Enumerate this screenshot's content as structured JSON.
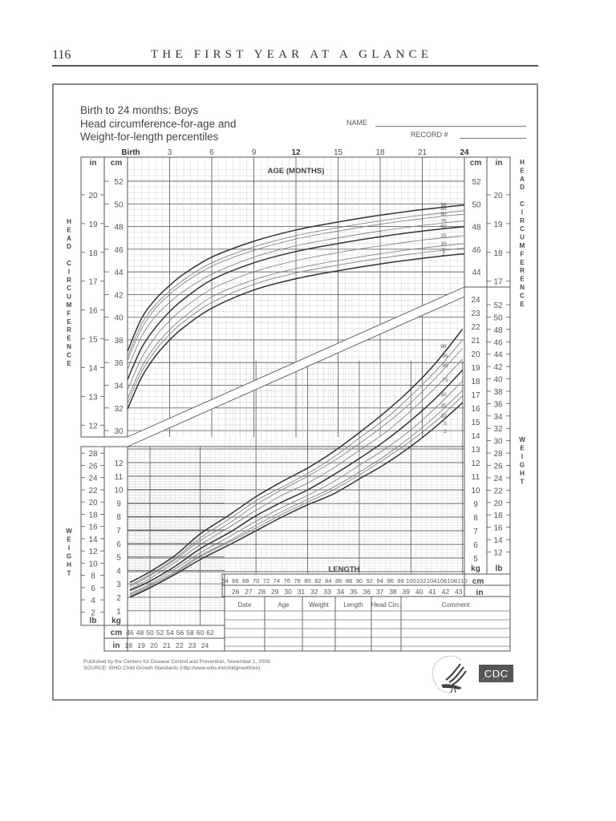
{
  "page": {
    "number": "116",
    "running_title": "THE FIRST YEAR AT A GLANCE"
  },
  "chart_title": {
    "line1": "Birth to 24 months: Boys",
    "line2": "Head circumference-for-age and",
    "line3": "Weight-for-length percentiles"
  },
  "form_fields": {
    "name_label": "NAME",
    "record_label": "RECORD #"
  },
  "axes": {
    "age_label": "AGE (MONTHS)",
    "age_ticks": [
      "Birth",
      "3",
      "6",
      "9",
      "12",
      "15",
      "18",
      "21",
      "24"
    ],
    "head_cm_ticks": [
      "52",
      "50",
      "48",
      "46",
      "44",
      "42",
      "40",
      "38",
      "36",
      "34",
      "32",
      "30"
    ],
    "head_in_ticks_left": [
      "20",
      "19",
      "18",
      "17",
      "16",
      "15",
      "14",
      "13",
      "12"
    ],
    "head_in_ticks_right": [
      "20",
      "19",
      "18",
      "17"
    ],
    "head_cm_ticks_right": [
      "52",
      "50",
      "48",
      "46",
      "44"
    ],
    "unit_in": "in",
    "unit_cm": "cm",
    "unit_kg": "kg",
    "unit_lb": "lb",
    "vertical_head_label": "HEAD CIRCUMFERENCE",
    "vertical_weight_label": "WEIGHT",
    "weight_kg_left": [
      "12",
      "11",
      "10",
      "9",
      "8",
      "7",
      "6",
      "5",
      "4",
      "3",
      "2",
      "1"
    ],
    "weight_lb_left": [
      "28",
      "26",
      "24",
      "22",
      "20",
      "18",
      "16",
      "14",
      "12",
      "10",
      "8",
      "6",
      "4",
      "2"
    ],
    "weight_kg_right": [
      "24",
      "23",
      "22",
      "21",
      "20",
      "19",
      "18",
      "17",
      "16",
      "15",
      "14",
      "13",
      "12",
      "11",
      "10",
      "9",
      "8",
      "7",
      "6",
      "5"
    ],
    "weight_lb_right": [
      "52",
      "50",
      "48",
      "46",
      "44",
      "42",
      "40",
      "38",
      "36",
      "34",
      "32",
      "30",
      "28",
      "26",
      "24",
      "22",
      "20",
      "18",
      "16",
      "14",
      "12"
    ],
    "length_label": "LENGTH",
    "length_cm_left": [
      "46",
      "48",
      "50",
      "52",
      "54",
      "56",
      "58",
      "60",
      "62"
    ],
    "length_in_left": [
      "18",
      "19",
      "20",
      "21",
      "22",
      "23",
      "24"
    ],
    "length_cm_right": [
      "64",
      "66",
      "68",
      "70",
      "72",
      "74",
      "76",
      "78",
      "80",
      "82",
      "84",
      "86",
      "88",
      "90",
      "92",
      "94",
      "96",
      "98",
      "100",
      "102",
      "104",
      "106",
      "108",
      "110"
    ],
    "length_in_right": [
      "26",
      "27",
      "28",
      "29",
      "30",
      "31",
      "32",
      "33",
      "34",
      "35",
      "36",
      "37",
      "38",
      "39",
      "40",
      "41",
      "42",
      "43"
    ]
  },
  "record_table": {
    "headers": [
      "Date",
      "Age",
      "Weight",
      "Length",
      "Head Circ.",
      "Comment"
    ],
    "rows": [
      [
        "",
        "",
        "",
        "",
        "",
        ""
      ],
      [
        "",
        "",
        "",
        "",
        "",
        ""
      ],
      [
        "",
        "",
        "",
        "",
        "",
        ""
      ],
      [
        "",
        "",
        "",
        "",
        "",
        ""
      ],
      [
        "",
        "",
        "",
        "",
        "",
        ""
      ]
    ]
  },
  "footer": {
    "published": "Published by the Centers for Disease Control and Prevention, November 1, 2009",
    "source": "SOURCE:  WHO Child Growth Standards (http://www.who.int/childgrowth/en)",
    "cdc_logo_text": "CDC"
  },
  "chart_data": [
    {
      "type": "line",
      "title": "Head circumference-for-age percentiles, Birth to 24 months: Boys",
      "xlabel": "AGE (MONTHS)",
      "ylabel": "HEAD CIRCUMFERENCE (cm)",
      "x": [
        0,
        1,
        2,
        3,
        4,
        6,
        9,
        12,
        15,
        18,
        21,
        24
      ],
      "xlim": [
        0,
        24
      ],
      "ylim": [
        30,
        53
      ],
      "grid": true,
      "series": [
        {
          "name": "98",
          "values": [
            37.0,
            39.9,
            41.6,
            42.8,
            43.8,
            45.3,
            46.7,
            47.7,
            48.4,
            49.0,
            49.5,
            49.9
          ]
        },
        {
          "name": "95",
          "values": [
            36.5,
            39.4,
            41.1,
            42.3,
            43.3,
            44.8,
            46.2,
            47.2,
            47.9,
            48.5,
            49.0,
            49.4
          ]
        },
        {
          "name": "90",
          "values": [
            36.2,
            39.0,
            40.8,
            42.0,
            43.0,
            44.5,
            45.9,
            46.9,
            47.6,
            48.2,
            48.7,
            49.1
          ]
        },
        {
          "name": "75",
          "values": [
            35.4,
            38.3,
            40.1,
            41.3,
            42.3,
            43.8,
            45.3,
            46.3,
            47.0,
            47.6,
            48.1,
            48.5
          ]
        },
        {
          "name": "50",
          "values": [
            34.5,
            37.3,
            39.1,
            40.5,
            41.6,
            43.3,
            44.8,
            45.8,
            46.5,
            47.1,
            47.6,
            48.0
          ]
        },
        {
          "name": "25",
          "values": [
            33.6,
            36.4,
            38.3,
            39.7,
            40.8,
            42.5,
            44.0,
            45.0,
            45.7,
            46.3,
            46.8,
            47.2
          ]
        },
        {
          "name": "10",
          "values": [
            32.8,
            35.6,
            37.5,
            38.9,
            40.0,
            41.8,
            43.3,
            44.3,
            45.0,
            45.6,
            46.1,
            46.5
          ]
        },
        {
          "name": "5",
          "values": [
            32.4,
            35.2,
            37.1,
            38.5,
            39.6,
            41.3,
            42.9,
            43.9,
            44.6,
            45.2,
            45.7,
            46.1
          ]
        },
        {
          "name": "2",
          "values": [
            31.9,
            34.7,
            36.6,
            38.0,
            39.1,
            40.8,
            42.4,
            43.4,
            44.1,
            44.7,
            45.2,
            45.6
          ]
        }
      ]
    },
    {
      "type": "line",
      "title": "Weight-for-length percentiles, Birth to 24 months: Boys",
      "xlabel": "LENGTH (cm)",
      "ylabel": "WEIGHT (kg)",
      "x": [
        46,
        50,
        55,
        60,
        65,
        70,
        75,
        80,
        85,
        90,
        95,
        100,
        105,
        110
      ],
      "xlim": [
        45,
        110
      ],
      "ylim": [
        1,
        24
      ],
      "grid": true,
      "series": [
        {
          "name": "98",
          "values": [
            3.1,
            3.9,
            5.1,
            6.7,
            8.2,
            9.5,
            10.6,
            11.6,
            12.8,
            14.2,
            15.7,
            17.4,
            19.4,
            21.8
          ]
        },
        {
          "name": "95",
          "values": [
            2.9,
            3.7,
            4.9,
            6.4,
            7.9,
            9.2,
            10.2,
            11.2,
            12.4,
            13.8,
            15.2,
            16.9,
            18.8,
            21.0
          ]
        },
        {
          "name": "90",
          "values": [
            2.8,
            3.6,
            4.8,
            6.2,
            7.6,
            8.9,
            10.0,
            11.0,
            12.1,
            13.4,
            14.8,
            16.4,
            18.3,
            20.4
          ]
        },
        {
          "name": "75",
          "values": [
            2.6,
            3.4,
            4.6,
            5.9,
            7.3,
            8.5,
            9.6,
            10.5,
            11.6,
            12.9,
            14.2,
            15.8,
            17.6,
            19.6
          ]
        },
        {
          "name": "50",
          "values": [
            2.5,
            3.2,
            4.3,
            5.6,
            6.9,
            8.1,
            9.1,
            10.0,
            11.1,
            12.3,
            13.6,
            15.1,
            16.8,
            18.8
          ]
        },
        {
          "name": "25",
          "values": [
            2.3,
            3.0,
            4.1,
            5.3,
            6.6,
            7.7,
            8.7,
            9.6,
            10.6,
            11.8,
            13.0,
            14.4,
            16.1,
            18.0
          ]
        },
        {
          "name": "10",
          "values": [
            2.2,
            2.9,
            3.9,
            5.1,
            6.3,
            7.4,
            8.4,
            9.3,
            10.2,
            11.3,
            12.5,
            13.9,
            15.5,
            17.3
          ]
        },
        {
          "name": "5",
          "values": [
            2.1,
            2.8,
            3.8,
            5.0,
            6.2,
            7.2,
            8.2,
            9.1,
            10.0,
            11.1,
            12.3,
            13.6,
            15.1,
            16.9
          ]
        },
        {
          "name": "2",
          "values": [
            2.0,
            2.7,
            3.7,
            4.8,
            6.0,
            7.0,
            8.0,
            8.9,
            9.7,
            10.8,
            11.9,
            13.2,
            14.7,
            16.4
          ]
        }
      ]
    }
  ]
}
